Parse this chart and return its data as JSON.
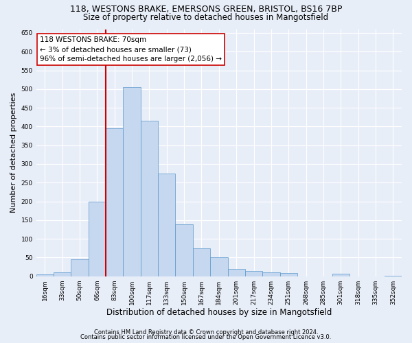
{
  "title_line1": "118, WESTONS BRAKE, EMERSONS GREEN, BRISTOL, BS16 7BP",
  "title_line2": "Size of property relative to detached houses in Mangotsfield",
  "xlabel": "Distribution of detached houses by size in Mangotsfield",
  "ylabel": "Number of detached properties",
  "categories": [
    "16sqm",
    "33sqm",
    "50sqm",
    "66sqm",
    "83sqm",
    "100sqm",
    "117sqm",
    "133sqm",
    "150sqm",
    "167sqm",
    "184sqm",
    "201sqm",
    "217sqm",
    "234sqm",
    "251sqm",
    "268sqm",
    "285sqm",
    "301sqm",
    "318sqm",
    "335sqm",
    "352sqm"
  ],
  "values": [
    5,
    10,
    45,
    200,
    395,
    505,
    415,
    275,
    138,
    75,
    50,
    20,
    15,
    10,
    8,
    0,
    0,
    7,
    0,
    0,
    2
  ],
  "bar_color": "#c5d8f0",
  "bar_edge_color": "#5a96cc",
  "vline_x": 3.5,
  "vline_color": "#cc0000",
  "annotation_text": "118 WESTONS BRAKE: 70sqm\n← 3% of detached houses are smaller (73)\n96% of semi-detached houses are larger (2,056) →",
  "annotation_box_color": "white",
  "annotation_box_edge_color": "#cc0000",
  "ylim": [
    0,
    660
  ],
  "yticks": [
    0,
    50,
    100,
    150,
    200,
    250,
    300,
    350,
    400,
    450,
    500,
    550,
    600,
    650
  ],
  "footer_line1": "Contains HM Land Registry data © Crown copyright and database right 2024.",
  "footer_line2": "Contains public sector information licensed under the Open Government Licence v3.0.",
  "background_color": "#e8eef8",
  "plot_background_color": "#e8eef8",
  "grid_color": "white",
  "title_fontsize": 9,
  "subtitle_fontsize": 8.5,
  "axis_label_fontsize": 8,
  "tick_fontsize": 6.5,
  "annotation_fontsize": 7.5,
  "footer_fontsize": 6
}
